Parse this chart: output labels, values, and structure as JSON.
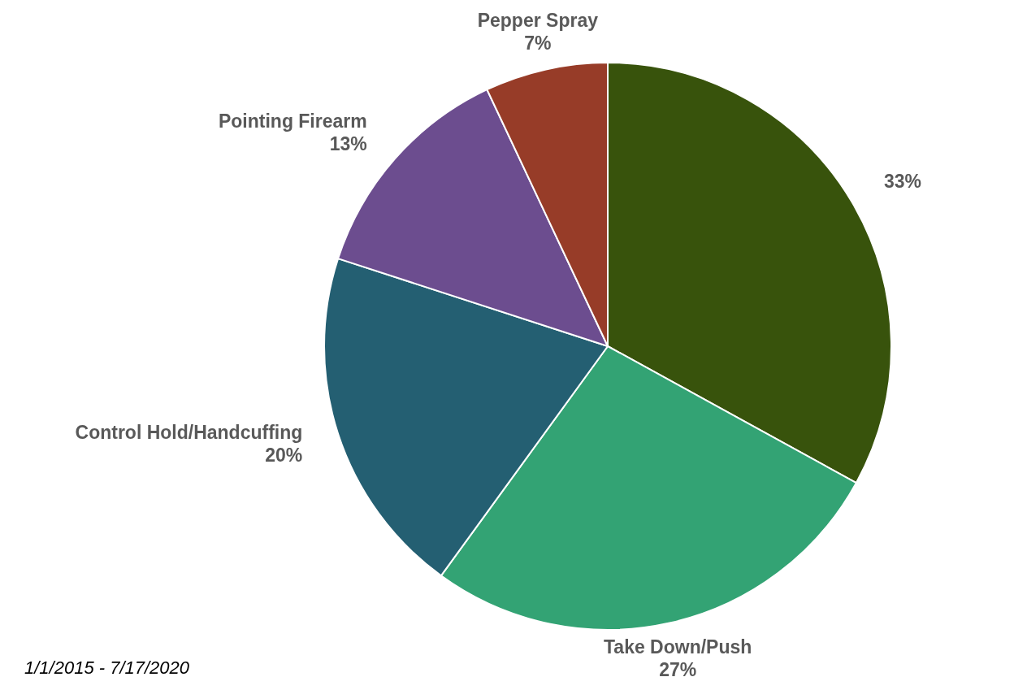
{
  "chart_data": {
    "type": "pie",
    "categories": [
      null,
      "Take Down/Push",
      "Control Hold/Handcuffing",
      "Pointing Firearm",
      "Pepper Spray"
    ],
    "values": [
      33,
      27,
      20,
      13,
      7
    ],
    "value_labels": [
      "33%",
      "27%",
      "20%",
      "13%",
      "7%"
    ],
    "colors": [
      "#38530c",
      "#33a374",
      "#245f72",
      "#6c4d8f",
      "#973c28"
    ],
    "legend": false,
    "annotations": [
      "1/1/2015 - 7/17/2020"
    ]
  }
}
